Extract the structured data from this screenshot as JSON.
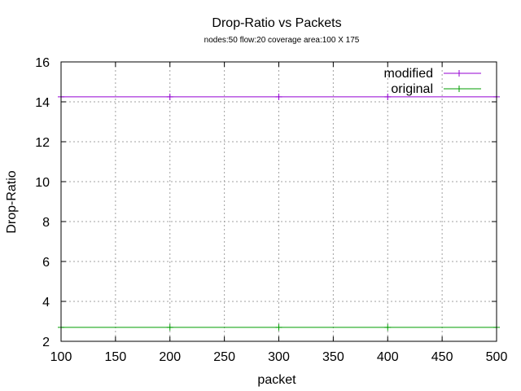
{
  "chart_data": {
    "type": "line",
    "title": "Drop-Ratio vs Packets",
    "subtitle": "nodes:50  flow:20  coverage area:100 X 175",
    "xlabel": "packet",
    "ylabel": "Drop-Ratio",
    "xlim": [
      100,
      500
    ],
    "ylim": [
      2,
      16
    ],
    "x_ticks": [
      100,
      150,
      200,
      250,
      300,
      350,
      400,
      450,
      500
    ],
    "y_ticks": [
      2,
      4,
      6,
      8,
      10,
      12,
      14,
      16
    ],
    "grid": true,
    "legend_position": "top-right",
    "x": [
      100,
      200,
      300,
      400,
      500
    ],
    "series": [
      {
        "name": "modified",
        "color": "#9400d3",
        "values": [
          14.25,
          14.25,
          14.25,
          14.25,
          14.25
        ]
      },
      {
        "name": "original",
        "color": "#009e00",
        "values": [
          2.7,
          2.7,
          2.7,
          2.7,
          2.7
        ]
      }
    ]
  }
}
